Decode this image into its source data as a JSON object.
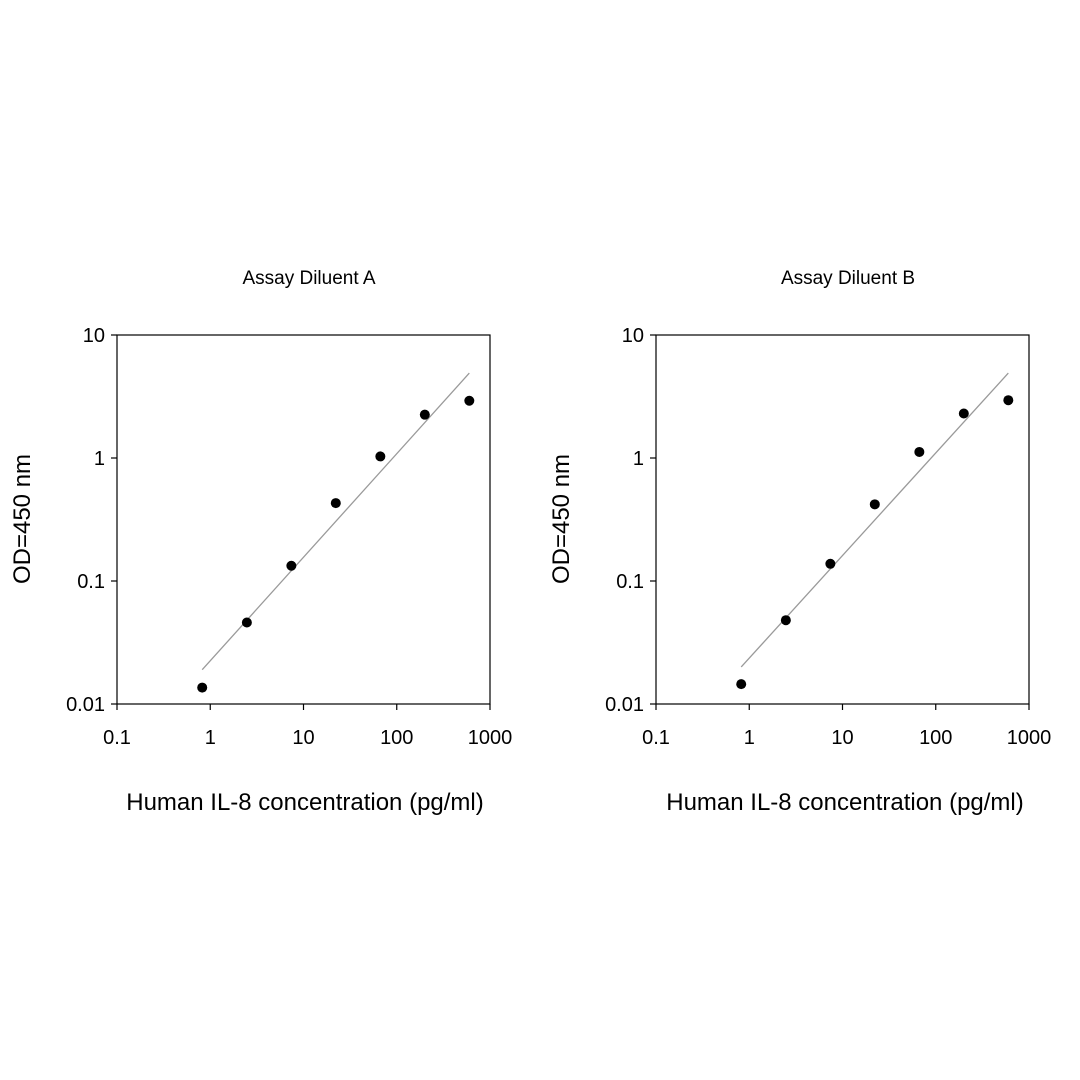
{
  "chart_data": [
    {
      "type": "scatter",
      "title": "Assay Diluent A",
      "xlabel": "Human IL-8 concentration (pg/ml)",
      "ylabel": "OD=450 nm",
      "xscale": "log",
      "yscale": "log",
      "xlim": [
        0.1,
        1000
      ],
      "ylim": [
        0.01,
        10
      ],
      "xticks": [
        "0.1",
        "1",
        "10",
        "100",
        "1000"
      ],
      "yticks": [
        "0.01",
        "0.1",
        "1",
        "10"
      ],
      "grid": false,
      "legend": "none",
      "points": {
        "x": [
          0.82,
          2.47,
          7.41,
          22.2,
          66.7,
          200,
          600
        ],
        "y": [
          0.0136,
          0.046,
          0.133,
          0.43,
          1.03,
          2.25,
          2.92
        ]
      },
      "trendline": {
        "x": [
          0.82,
          600
        ],
        "y": [
          0.019,
          4.9
        ]
      }
    },
    {
      "type": "scatter",
      "title": "Assay Diluent B",
      "xlabel": "Human IL-8 concentration (pg/ml)",
      "ylabel": "OD=450 nm",
      "xscale": "log",
      "yscale": "log",
      "xlim": [
        0.1,
        1000
      ],
      "ylim": [
        0.01,
        10
      ],
      "xticks": [
        "0.1",
        "1",
        "10",
        "100",
        "1000"
      ],
      "yticks": [
        "0.01",
        "0.1",
        "1",
        "10"
      ],
      "grid": false,
      "legend": "none",
      "points": {
        "x": [
          0.82,
          2.47,
          7.41,
          22.2,
          66.7,
          200,
          600
        ],
        "y": [
          0.0145,
          0.048,
          0.138,
          0.42,
          1.12,
          2.3,
          2.95
        ]
      },
      "trendline": {
        "x": [
          0.82,
          600
        ],
        "y": [
          0.02,
          4.9
        ]
      }
    }
  ]
}
